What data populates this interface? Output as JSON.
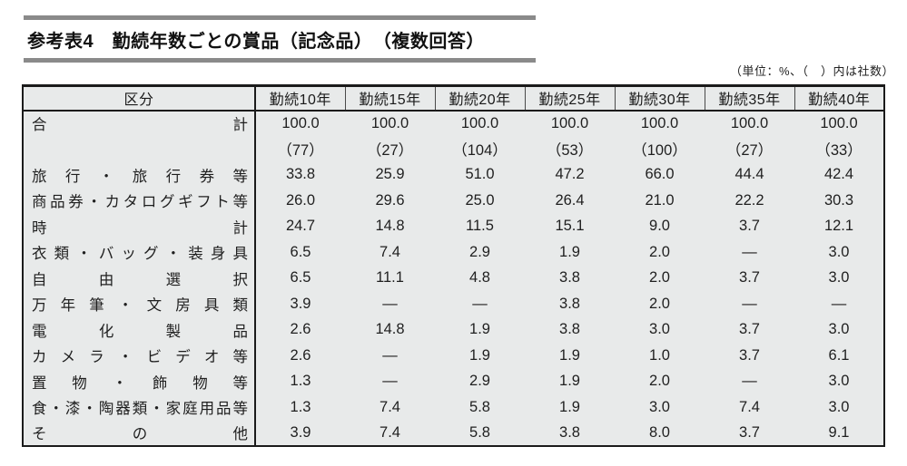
{
  "title": "参考表4　勤続年数ごとの賞品（記念品）　（複数回答）",
  "unit_note": "（単位：%、（　）内は社数）",
  "colors": {
    "table_background": "#e8eaea",
    "border_dark": "#1b1b1b",
    "title_bar_gray": "#8a8a8a",
    "page_background": "#ffffff"
  },
  "table": {
    "corner_header": "区分",
    "column_headers": [
      "勤続10年",
      "勤続15年",
      "勤続20年",
      "勤続25年",
      "勤続30年",
      "勤続35年",
      "勤続40年"
    ],
    "rows": [
      {
        "label": "合計",
        "values": [
          "100.0",
          "100.0",
          "100.0",
          "100.0",
          "100.0",
          "100.0",
          "100.0"
        ]
      },
      {
        "label": "",
        "values": [
          "（77）",
          "（27）",
          "（104）",
          "（53）",
          "（100）",
          "（27）",
          "（33）"
        ]
      },
      {
        "label": "旅行・旅行券等",
        "values": [
          "33.8",
          "25.9",
          "51.0",
          "47.2",
          "66.0",
          "44.4",
          "42.4"
        ]
      },
      {
        "label": "商品券・カタログギフト等",
        "values": [
          "26.0",
          "29.6",
          "25.0",
          "26.4",
          "21.0",
          "22.2",
          "30.3"
        ]
      },
      {
        "label": "時計",
        "values": [
          "24.7",
          "14.8",
          "11.5",
          "15.1",
          "9.0",
          "3.7",
          "12.1"
        ]
      },
      {
        "label": "衣類・バッグ・装身具",
        "values": [
          "6.5",
          "7.4",
          "2.9",
          "1.9",
          "2.0",
          "—",
          "3.0"
        ]
      },
      {
        "label": "自由選択",
        "values": [
          "6.5",
          "11.1",
          "4.8",
          "3.8",
          "2.0",
          "3.7",
          "3.0"
        ]
      },
      {
        "label": "万年筆・文房具類",
        "values": [
          "3.9",
          "—",
          "—",
          "3.8",
          "2.0",
          "—",
          "—"
        ]
      },
      {
        "label": "電化製品",
        "values": [
          "2.6",
          "14.8",
          "1.9",
          "3.8",
          "3.0",
          "3.7",
          "3.0"
        ]
      },
      {
        "label": "カメラ・ビデオ等",
        "values": [
          "2.6",
          "—",
          "1.9",
          "1.9",
          "1.0",
          "3.7",
          "6.1"
        ]
      },
      {
        "label": "置物・飾物等",
        "values": [
          "1.3",
          "—",
          "2.9",
          "1.9",
          "2.0",
          "—",
          "3.0"
        ]
      },
      {
        "label": "食・漆・陶器類・家庭用品等",
        "values": [
          "1.3",
          "7.4",
          "5.8",
          "1.9",
          "3.0",
          "7.4",
          "3.0"
        ]
      },
      {
        "label": "その他",
        "values": [
          "3.9",
          "7.4",
          "5.8",
          "3.8",
          "8.0",
          "3.7",
          "9.1"
        ]
      }
    ]
  }
}
